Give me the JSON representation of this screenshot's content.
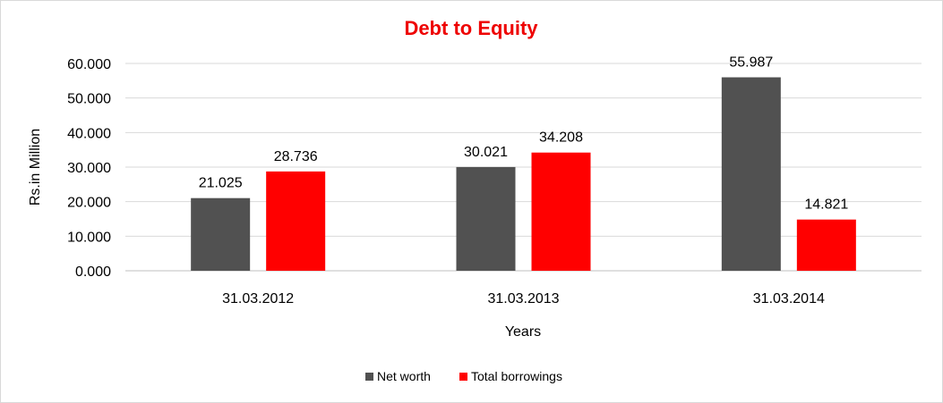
{
  "chart_data": {
    "type": "bar",
    "title": "Debt to Equity",
    "title_color": "#ee0000",
    "xlabel": "Years",
    "ylabel": "Rs.in Million",
    "categories": [
      "31.03.2012",
      "31.03.2013",
      "31.03.2014"
    ],
    "series": [
      {
        "name": "Net worth",
        "color": "#515151",
        "values": [
          21.025,
          30.021,
          55.987
        ],
        "labels": [
          "21.025",
          "30.021",
          "55.987"
        ]
      },
      {
        "name": "Total borrowings",
        "color": "#ff0000",
        "values": [
          28.736,
          34.208,
          14.821
        ],
        "labels": [
          "28.736",
          "34.208",
          "14.821"
        ]
      }
    ],
    "ylim": [
      0,
      60
    ],
    "yticks": [
      0,
      10,
      20,
      30,
      40,
      50,
      60
    ],
    "ytick_labels": [
      "0.000",
      "10.000",
      "20.000",
      "30.000",
      "40.000",
      "50.000",
      "60.000"
    ],
    "grid": true,
    "legend_position": "bottom"
  }
}
